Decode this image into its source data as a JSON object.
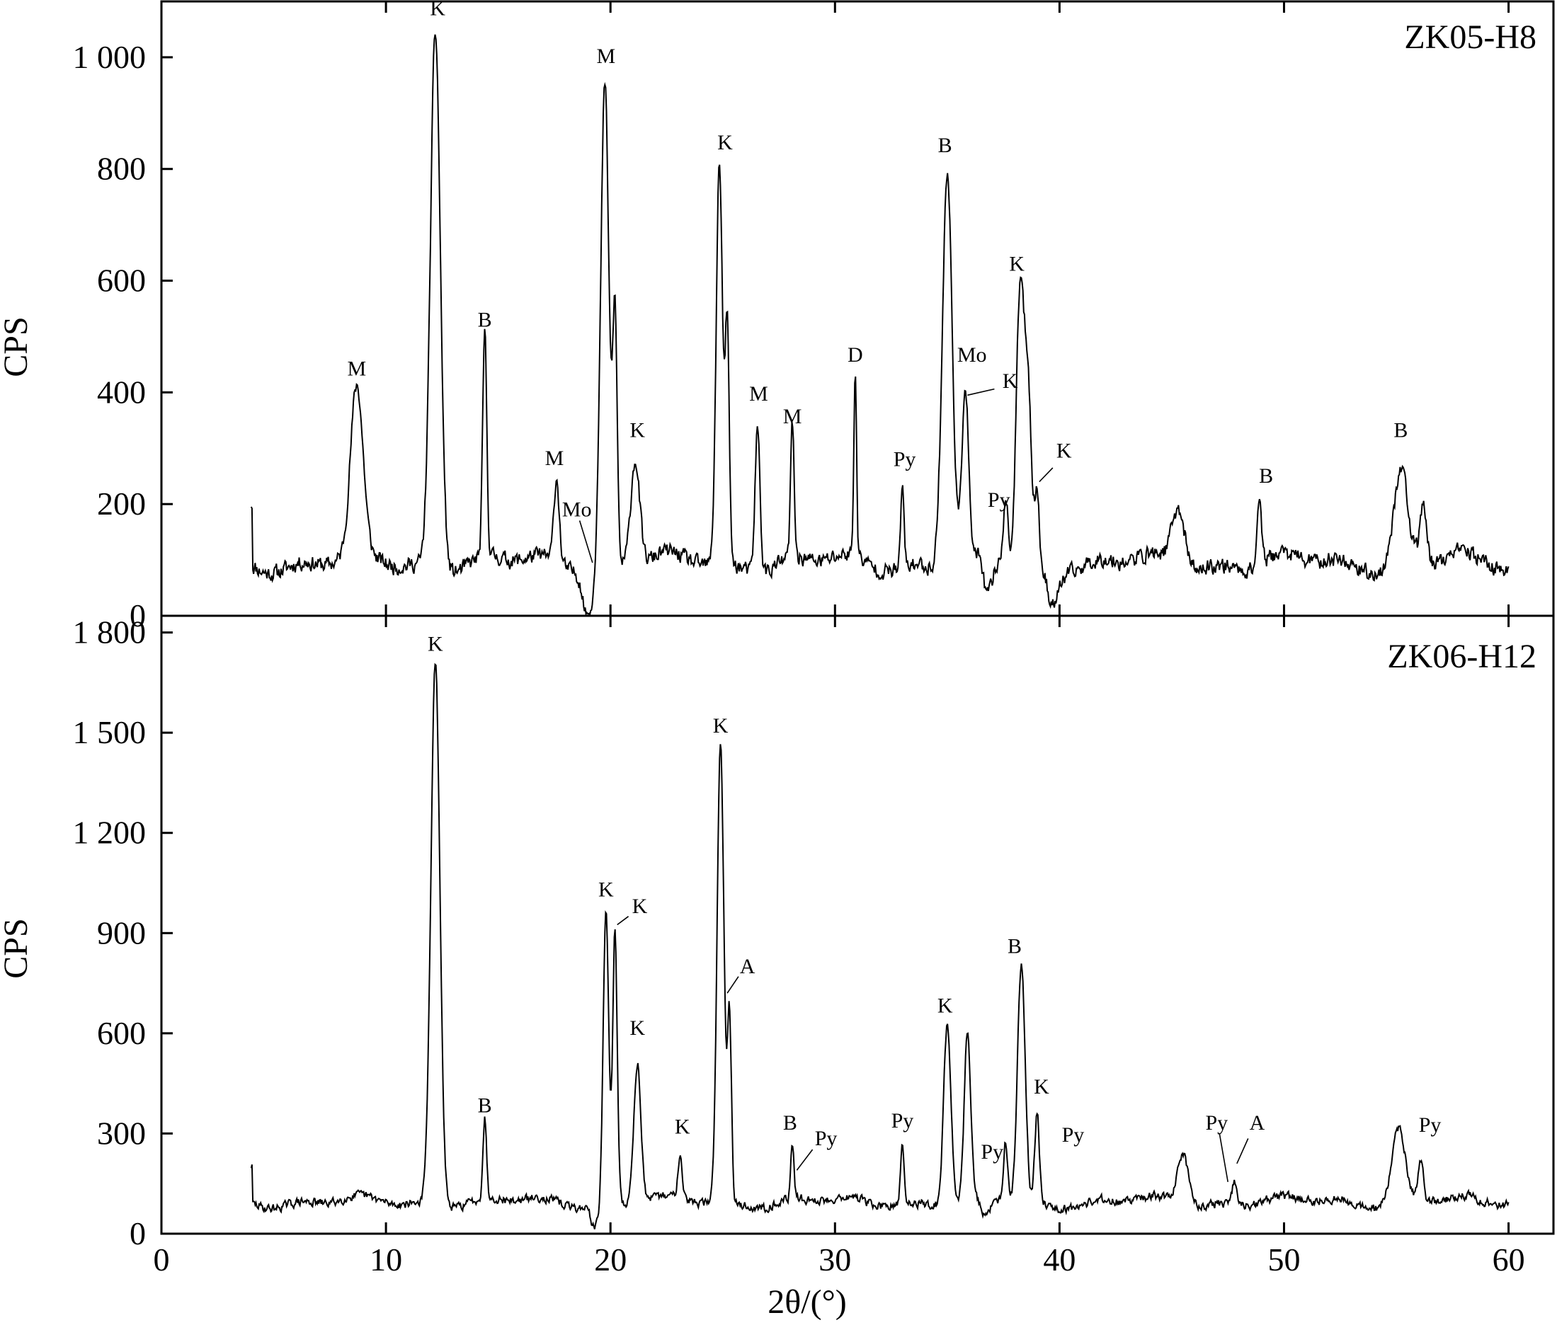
{
  "chart_data": [
    {
      "type": "line",
      "sample_label": "ZK05-H8",
      "xlabel": "2θ/(°)",
      "ylabel": "CPS",
      "xlim": [
        0,
        62
      ],
      "ylim": [
        0,
        1100
      ],
      "x_ticks": [
        0,
        10,
        20,
        30,
        40,
        50,
        60
      ],
      "x_tick_labels": [
        "0",
        "10",
        "20",
        "30",
        "40",
        "50",
        "60"
      ],
      "y_ticks": [
        0,
        200,
        400,
        600,
        800,
        1000
      ],
      "y_tick_labels": [
        "0",
        "200",
        "400",
        "600",
        "800",
        "1 000"
      ],
      "baseline": 95,
      "noise": 22,
      "seed": 11,
      "x_range": [
        4,
        60
      ],
      "peaks": [
        [
          8.7,
          300,
          0.28
        ],
        [
          12.2,
          960,
          0.22
        ],
        [
          14.4,
          400,
          0.09
        ],
        [
          17.6,
          150,
          0.12
        ],
        [
          19.75,
          860,
          0.18
        ],
        [
          20.2,
          440,
          0.1
        ],
        [
          21.1,
          190,
          0.2
        ],
        [
          24.85,
          720,
          0.14
        ],
        [
          25.2,
          420,
          0.09
        ],
        [
          26.55,
          260,
          0.11
        ],
        [
          28.1,
          240,
          0.08
        ],
        [
          30.9,
          340,
          0.06
        ],
        [
          33.0,
          150,
          0.07
        ],
        [
          35.0,
          700,
          0.22
        ],
        [
          35.8,
          310,
          0.14
        ],
        [
          38.25,
          490,
          0.17
        ],
        [
          38.6,
          300,
          0.15
        ],
        [
          39.0,
          120,
          0.1
        ],
        [
          45.3,
          100,
          0.28
        ],
        [
          48.9,
          120,
          0.1
        ],
        [
          55.2,
          170,
          0.3
        ],
        [
          56.2,
          110,
          0.14
        ],
        [
          37.6,
          120,
          0.1
        ]
      ],
      "dips": [
        [
          19.0,
          90,
          0.2
        ],
        [
          36.8,
          70,
          0.2
        ],
        [
          39.7,
          60,
          0.25
        ]
      ],
      "annotations": [
        {
          "text": "M",
          "x": 8.7,
          "y": 430
        },
        {
          "text": "K",
          "x": 12.3,
          "y": 1075
        },
        {
          "text": "B",
          "x": 14.4,
          "y": 518
        },
        {
          "text": "M",
          "x": 17.5,
          "y": 270
        },
        {
          "text": "Mo",
          "x": 18.5,
          "y": 178,
          "lx2": 19.2,
          "ly2": 95
        },
        {
          "text": "M",
          "x": 19.8,
          "y": 990
        },
        {
          "text": "K",
          "x": 21.2,
          "y": 320
        },
        {
          "text": "K",
          "x": 25.1,
          "y": 835
        },
        {
          "text": "M",
          "x": 26.6,
          "y": 385
        },
        {
          "text": "M",
          "x": 28.1,
          "y": 345
        },
        {
          "text": "D",
          "x": 30.9,
          "y": 455
        },
        {
          "text": "Py",
          "x": 33.1,
          "y": 268
        },
        {
          "text": "B",
          "x": 34.9,
          "y": 830
        },
        {
          "text": "Mo",
          "x": 36.1,
          "y": 455
        },
        {
          "text": "K",
          "x": 37.8,
          "y": 408,
          "lx1": 37.1,
          "ly1": 406,
          "lx2": 35.9,
          "ly2": 395
        },
        {
          "text": "Py",
          "x": 37.3,
          "y": 195
        },
        {
          "text": "K",
          "x": 38.1,
          "y": 618
        },
        {
          "text": "K",
          "x": 40.2,
          "y": 283,
          "lx1": 39.7,
          "ly1": 265,
          "lx2": 39.1,
          "ly2": 240
        },
        {
          "text": "B",
          "x": 49.2,
          "y": 238
        },
        {
          "text": "B",
          "x": 55.2,
          "y": 320
        }
      ]
    },
    {
      "type": "line",
      "sample_label": "ZK06-H12",
      "xlabel": "2θ/(°)",
      "ylabel": "CPS",
      "xlim": [
        0,
        62
      ],
      "ylim": [
        0,
        1850
      ],
      "x_ticks": [
        0,
        10,
        20,
        30,
        40,
        50,
        60
      ],
      "x_tick_labels": [
        "0",
        "10",
        "20",
        "30",
        "40",
        "50",
        "60"
      ],
      "y_ticks": [
        0,
        300,
        600,
        900,
        1200,
        1500,
        1800
      ],
      "y_tick_labels": [
        "0",
        "300",
        "600",
        "900",
        "1 200",
        "1 500",
        "1 800"
      ],
      "baseline": 95,
      "noise": 20,
      "seed": 29,
      "x_range": [
        4,
        60
      ],
      "peaks": [
        [
          12.2,
          1620,
          0.2
        ],
        [
          14.4,
          240,
          0.08
        ],
        [
          19.8,
          880,
          0.12
        ],
        [
          20.2,
          820,
          0.1
        ],
        [
          21.2,
          420,
          0.16
        ],
        [
          23.1,
          130,
          0.1
        ],
        [
          24.9,
          1380,
          0.15
        ],
        [
          25.3,
          560,
          0.09
        ],
        [
          28.1,
          170,
          0.07
        ],
        [
          33.0,
          180,
          0.08
        ],
        [
          35.0,
          540,
          0.16
        ],
        [
          35.9,
          500,
          0.14
        ],
        [
          37.6,
          180,
          0.1
        ],
        [
          38.3,
          710,
          0.17
        ],
        [
          39.0,
          270,
          0.1
        ],
        [
          45.5,
          150,
          0.25
        ],
        [
          47.8,
          70,
          0.1
        ],
        [
          55.1,
          220,
          0.3
        ],
        [
          56.1,
          120,
          0.12
        ]
      ],
      "dips": [
        [
          19.3,
          70,
          0.15
        ],
        [
          36.7,
          60,
          0.2
        ]
      ],
      "annotations": [
        {
          "text": "K",
          "x": 12.2,
          "y": 1745
        },
        {
          "text": "B",
          "x": 14.4,
          "y": 363
        },
        {
          "text": "K",
          "x": 19.8,
          "y": 1010
        },
        {
          "text": "K",
          "x": 21.3,
          "y": 960,
          "lx1": 20.8,
          "ly1": 950,
          "lx2": 20.3,
          "ly2": 925
        },
        {
          "text": "K",
          "x": 21.2,
          "y": 595
        },
        {
          "text": "K",
          "x": 23.2,
          "y": 300
        },
        {
          "text": "K",
          "x": 24.9,
          "y": 1500
        },
        {
          "text": "A",
          "x": 26.1,
          "y": 780,
          "lx1": 25.7,
          "ly1": 770,
          "lx2": 25.2,
          "ly2": 720
        },
        {
          "text": "B",
          "x": 28.0,
          "y": 312
        },
        {
          "text": "Py",
          "x": 29.6,
          "y": 265,
          "lx1": 29.0,
          "ly1": 252,
          "lx2": 28.3,
          "ly2": 190
        },
        {
          "text": "Py",
          "x": 33.0,
          "y": 318
        },
        {
          "text": "K",
          "x": 34.9,
          "y": 662
        },
        {
          "text": "Py",
          "x": 37.0,
          "y": 225
        },
        {
          "text": "B",
          "x": 38.0,
          "y": 840
        },
        {
          "text": "K",
          "x": 39.2,
          "y": 420
        },
        {
          "text": "Py",
          "x": 40.6,
          "y": 275
        },
        {
          "text": "Py",
          "x": 47.0,
          "y": 312,
          "lx2": 47.5,
          "ly2": 155
        },
        {
          "text": "A",
          "x": 48.8,
          "y": 312,
          "lx1": 48.4,
          "ly1": 285,
          "lx2": 47.9,
          "ly2": 210
        },
        {
          "text": "Py",
          "x": 56.5,
          "y": 305
        }
      ]
    }
  ]
}
